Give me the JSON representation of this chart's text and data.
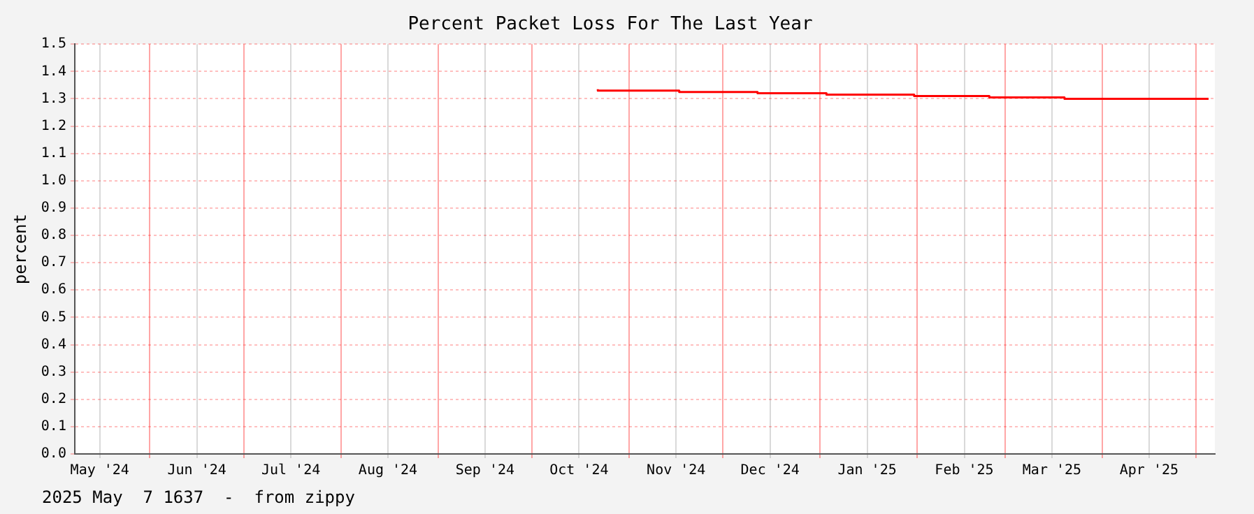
{
  "chart_data": {
    "type": "step",
    "title": "Percent Packet Loss For The Last Year",
    "ylabel": "percent",
    "annotations": [
      "2025 May  7 1637  -  from zippy"
    ],
    "x": [
      "2024-10-22",
      "2024-11-17",
      "2024-12-12",
      "2025-01-03",
      "2025-01-31",
      "2025-02-24",
      "2025-03-20",
      "2025-04-13",
      "2025-05-05"
    ],
    "series": [
      {
        "color": "#ff0000",
        "values": [
          1.335,
          1.33,
          1.325,
          1.32,
          1.315,
          1.31,
          1.305,
          1.3,
          1.3
        ]
      }
    ],
    "xlim": [
      "2024-05-08",
      "2025-05-07"
    ],
    "xticks": [
      {
        "value": "2024-05-16",
        "label": "May '24"
      },
      {
        "value": "2024-06-01",
        "label": null
      },
      {
        "value": "2024-06-16",
        "label": "Jun '24"
      },
      {
        "value": "2024-07-01",
        "label": null
      },
      {
        "value": "2024-07-16",
        "label": "Jul '24"
      },
      {
        "value": "2024-08-01",
        "label": null
      },
      {
        "value": "2024-08-16",
        "label": "Aug '24"
      },
      {
        "value": "2024-09-01",
        "label": null
      },
      {
        "value": "2024-09-16",
        "label": "Sep '24"
      },
      {
        "value": "2024-10-01",
        "label": null
      },
      {
        "value": "2024-10-16",
        "label": "Oct '24"
      },
      {
        "value": "2024-11-01",
        "label": null
      },
      {
        "value": "2024-11-16",
        "label": "Nov '24"
      },
      {
        "value": "2024-12-01",
        "label": null
      },
      {
        "value": "2024-12-16",
        "label": "Dec '24"
      },
      {
        "value": "2025-01-01",
        "label": null
      },
      {
        "value": "2025-01-16",
        "label": "Jan '25"
      },
      {
        "value": "2025-02-01",
        "label": null
      },
      {
        "value": "2025-02-16",
        "label": "Feb '25"
      },
      {
        "value": "2025-03-01",
        "label": null
      },
      {
        "value": "2025-03-16",
        "label": "Mar '25"
      },
      {
        "value": "2025-04-01",
        "label": null
      },
      {
        "value": "2025-04-16",
        "label": "Apr '25"
      },
      {
        "value": "2025-05-01",
        "label": null
      }
    ],
    "ylim": [
      0,
      1.5
    ],
    "yticks": [
      {
        "value": 0,
        "label": "0.0"
      },
      0.1,
      0.2,
      0.3,
      0.4,
      0.5,
      0.6,
      0.7,
      0.8,
      0.9,
      {
        "value": 1,
        "label": "1.0"
      },
      1.1,
      1.2,
      1.3,
      1.4,
      1.5
    ],
    "grid": true,
    "legend": false,
    "marker": "none",
    "line_style": "solid"
  }
}
